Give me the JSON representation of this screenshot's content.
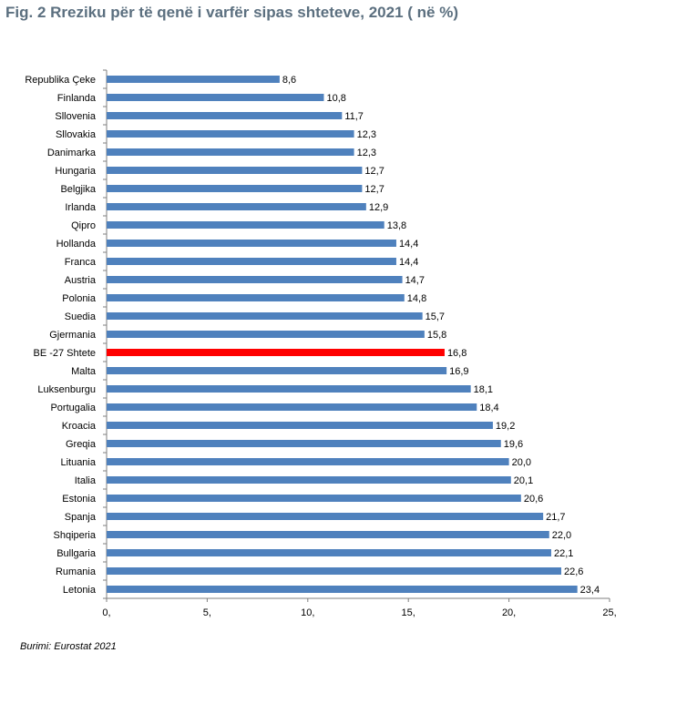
{
  "title": "Fig. 2 Rreziku për të qenë i varfër sipas shteteve, 2021 ( në %)",
  "source": "Burimi: Eurostat 2021",
  "colors": {
    "bar": "#4f81bd",
    "highlight": "#ff0000",
    "axis": "#7f7f7f"
  },
  "chart_data": {
    "type": "bar",
    "orientation": "horizontal",
    "title": "Fig. 2 Rreziku për të qenë i varfër sipas shteteve, 2021 ( në %)",
    "xlabel": "",
    "ylabel": "",
    "xlim": [
      0,
      25
    ],
    "highlight_category": "BE -27 Shtete",
    "categories": [
      "Republika Çeke",
      "Finlanda",
      "Sllovenia",
      "Sllovakia",
      "Danimarka",
      "Hungaria",
      "Belgjika",
      "Irlanda",
      "Qipro",
      "Hollanda",
      "Franca",
      "Austria",
      "Polonia",
      "Suedia",
      "Gjermania",
      "BE -27 Shtete",
      "Malta",
      "Luksenburgu",
      "Portugalia",
      "Kroacia",
      "Greqia",
      "Lituania",
      "Italia",
      "Estonia",
      "Spanja",
      "Shqiperia",
      "Bullgaria",
      "Rumania",
      "Letonia"
    ],
    "values": [
      8.6,
      10.8,
      11.7,
      12.3,
      12.3,
      12.7,
      12.7,
      12.9,
      13.8,
      14.4,
      14.4,
      14.7,
      14.8,
      15.7,
      15.8,
      16.8,
      16.9,
      18.1,
      18.4,
      19.2,
      19.6,
      20.0,
      20.1,
      20.6,
      21.7,
      22.0,
      22.1,
      22.6,
      23.4
    ],
    "value_labels": [
      "8,6",
      "10,8",
      "11,7",
      "12,3",
      "12,3",
      "12,7",
      "12,7",
      "12,9",
      "13,8",
      "14,4",
      "14,4",
      "14,7",
      "14,8",
      "15,7",
      "15,8",
      "16,8",
      "16,9",
      "18,1",
      "18,4",
      "19,2",
      "19,6",
      "20,0",
      "20,1",
      "20,6",
      "21,7",
      "22,0",
      "22,1",
      "22,6",
      "23,4"
    ],
    "x_ticks": [
      0,
      5,
      10,
      15,
      20,
      25
    ],
    "x_tick_labels": [
      "0,",
      "5,",
      "10,",
      "15,",
      "20,",
      "25,"
    ]
  }
}
